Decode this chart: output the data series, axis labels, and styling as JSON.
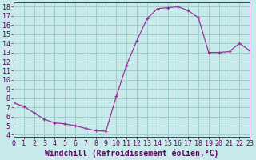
{
  "x": [
    0,
    1,
    2,
    3,
    4,
    5,
    6,
    7,
    8,
    9,
    10,
    11,
    12,
    13,
    14,
    15,
    16,
    17,
    18,
    19,
    20,
    21,
    22,
    23
  ],
  "y": [
    7.5,
    7.1,
    6.4,
    5.7,
    5.3,
    5.2,
    5.0,
    4.7,
    4.45,
    4.4,
    8.2,
    11.6,
    14.3,
    16.7,
    17.8,
    17.9,
    18.0,
    17.6,
    16.8,
    13.0,
    13.0,
    13.1,
    14.0,
    13.2
  ],
  "line_color": "#993399",
  "marker": "+",
  "bg_color": "#c8eaea",
  "grid_color": "#9ecece",
  "xlabel": "Windchill (Refroidissement éolien,°C)",
  "xlabel_color": "#660066",
  "tick_color": "#660066",
  "xlim": [
    0,
    23
  ],
  "ylim": [
    3.8,
    18.5
  ],
  "yticks": [
    4,
    5,
    6,
    7,
    8,
    9,
    10,
    11,
    12,
    13,
    14,
    15,
    16,
    17,
    18
  ],
  "xticks": [
    0,
    1,
    2,
    3,
    4,
    5,
    6,
    7,
    8,
    9,
    10,
    11,
    12,
    13,
    14,
    15,
    16,
    17,
    18,
    19,
    20,
    21,
    22,
    23
  ],
  "font_size": 6,
  "label_font_size": 7
}
